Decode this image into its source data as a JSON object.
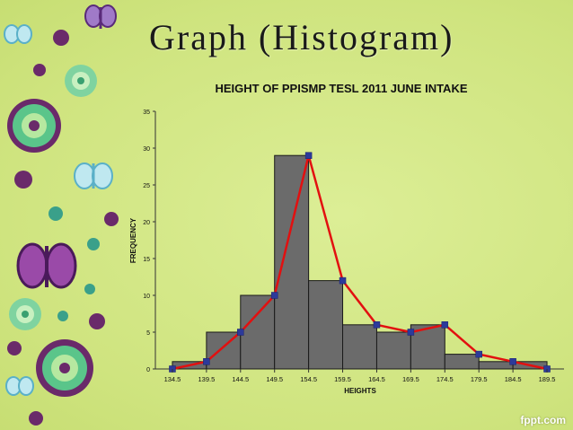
{
  "slide": {
    "title": "Graph (Histogram)",
    "watermark": "fppt.com"
  },
  "chart_data": {
    "type": "bar",
    "title": "HEIGHT OF PPISMP TESL 2011 JUNE INTAKE",
    "xlabel": "HEIGHTS",
    "ylabel": "FREQUENCY",
    "ylim": [
      0,
      35
    ],
    "yticks": [
      0,
      5,
      10,
      15,
      20,
      25,
      30,
      35
    ],
    "x_tick_labels": [
      "134.5",
      "139.5",
      "144.5",
      "149.5",
      "154.5",
      "159.5",
      "164.5",
      "169.5",
      "174.5",
      "179.5",
      "184.5",
      "189.5"
    ],
    "bins": [
      {
        "from": 134.5,
        "to": 139.5,
        "value": 1
      },
      {
        "from": 139.5,
        "to": 144.5,
        "value": 5
      },
      {
        "from": 144.5,
        "to": 149.5,
        "value": 10
      },
      {
        "from": 149.5,
        "to": 154.5,
        "value": 29
      },
      {
        "from": 154.5,
        "to": 159.5,
        "value": 12
      },
      {
        "from": 159.5,
        "to": 164.5,
        "value": 6
      },
      {
        "from": 164.5,
        "to": 169.5,
        "value": 5
      },
      {
        "from": 169.5,
        "to": 174.5,
        "value": 6
      },
      {
        "from": 174.5,
        "to": 179.5,
        "value": 2
      },
      {
        "from": 179.5,
        "to": 184.5,
        "value": 1
      },
      {
        "from": 184.5,
        "to": 189.5,
        "value": 1
      }
    ],
    "frequency_polygon": {
      "x": [
        134.5,
        139.5,
        144.5,
        149.5,
        154.5,
        159.5,
        164.5,
        169.5,
        174.5,
        179.5,
        184.5,
        189.5
      ],
      "y": [
        0,
        1,
        5,
        10,
        29,
        12,
        6,
        5,
        6,
        2,
        1,
        0
      ]
    },
    "grid": false,
    "colors": {
      "bar_fill": "#6b6b6b",
      "bar_stroke": "#1a1a1a",
      "line": "#e21010",
      "marker": "#2c3a9a"
    }
  }
}
